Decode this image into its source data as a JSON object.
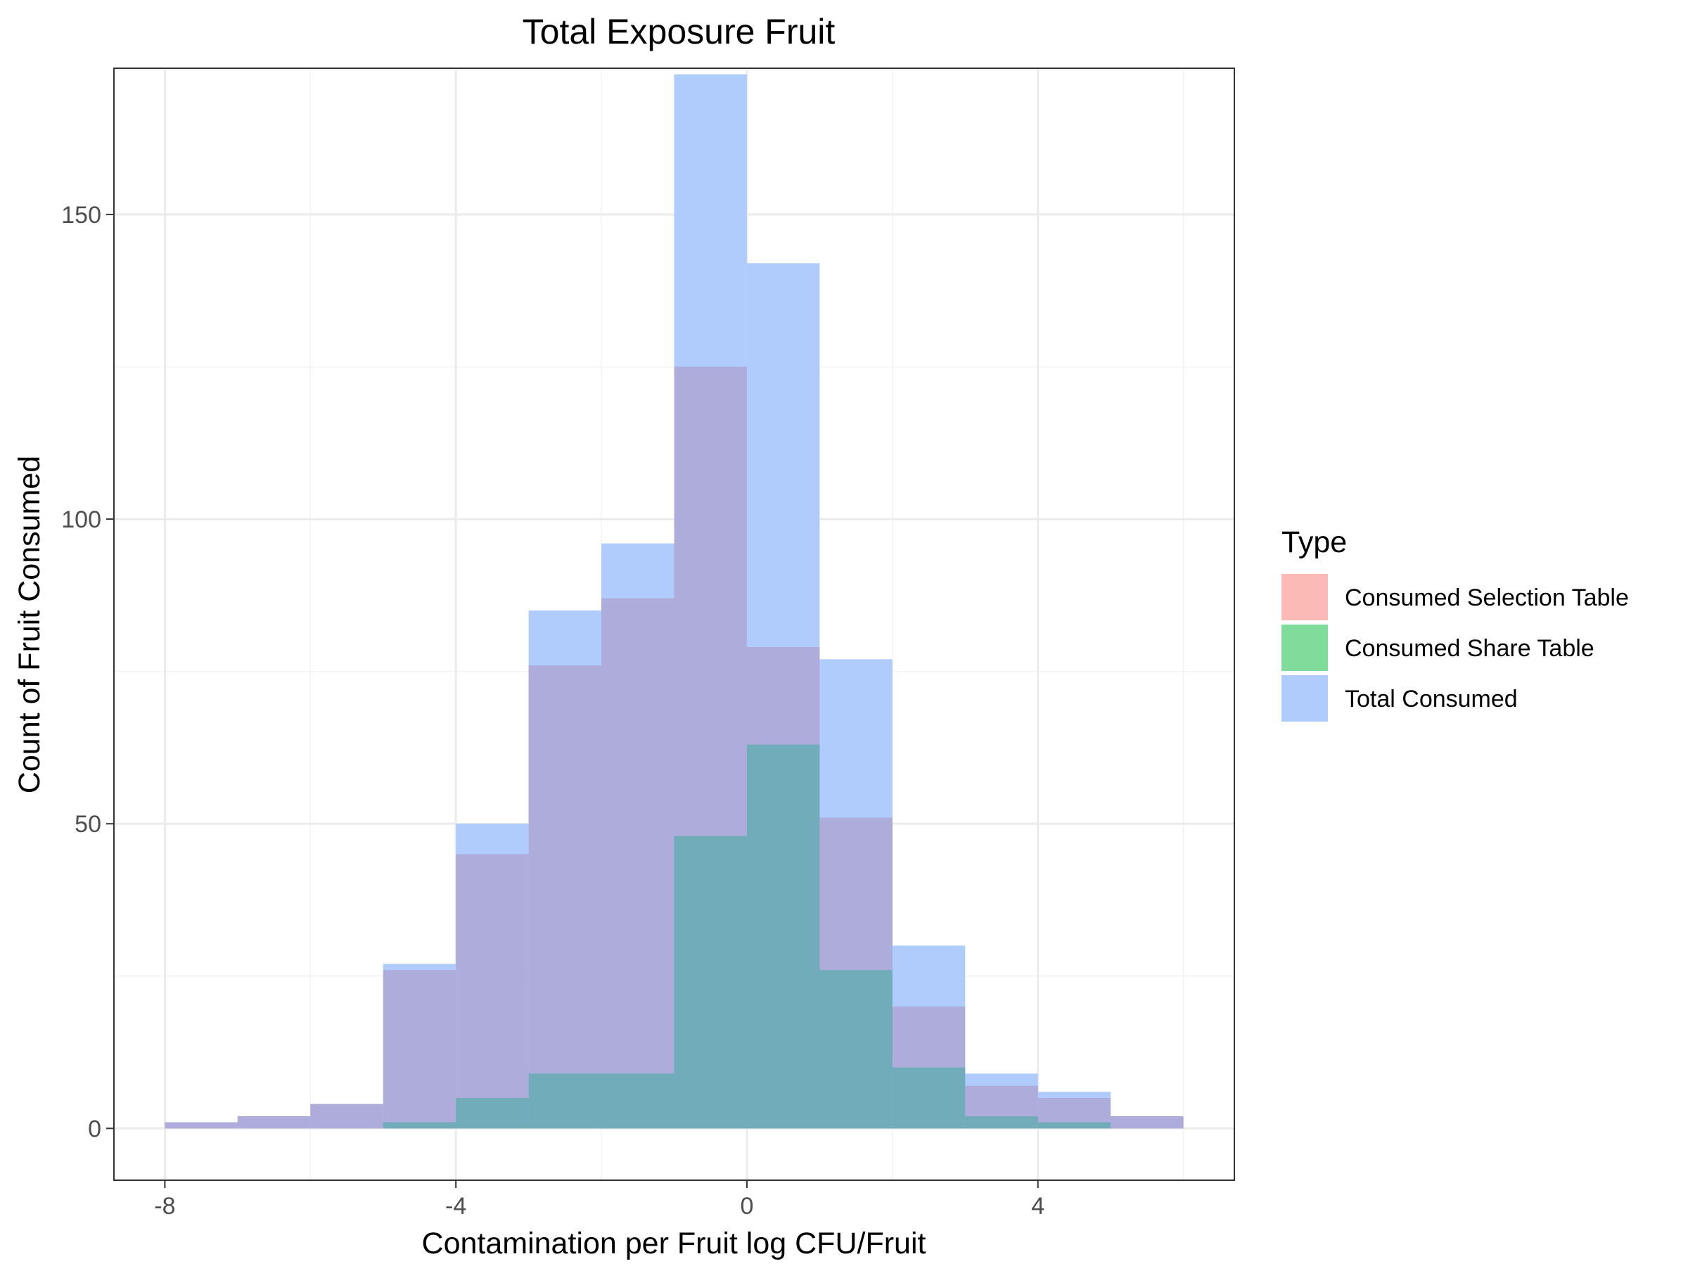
{
  "chart_data": {
    "type": "bar",
    "subtype": "overlaid-histogram",
    "title": "Total Exposure Fruit",
    "xlabel": "Contamination per Fruit log CFU/Fruit",
    "ylabel": "Count of Fruit Consumed",
    "xlim": [
      -8.7,
      6.7
    ],
    "ylim": [
      -8.5,
      174
    ],
    "xticks": [
      -8,
      -4,
      0,
      4
    ],
    "yticks": [
      0,
      50,
      100,
      150
    ],
    "bin_width": 1,
    "bin_starts": [
      -8,
      -7,
      -6,
      -5,
      -4,
      -3,
      -2,
      -1,
      0,
      1,
      2,
      3,
      4,
      5
    ],
    "grid": true,
    "legend": {
      "title": "Type",
      "position": "right",
      "entries": [
        "Consumed Selection Table",
        "Consumed Share Table",
        "Total Consumed"
      ]
    },
    "series": [
      {
        "name": "Total Consumed",
        "color": "#619CFF",
        "values": [
          1,
          2,
          4,
          27,
          50,
          85,
          96,
          173,
          142,
          77,
          30,
          9,
          6,
          2
        ]
      },
      {
        "name": "Consumed Selection Table",
        "color": "#F8766D",
        "values": [
          1,
          2,
          4,
          26,
          45,
          76,
          87,
          125,
          79,
          51,
          20,
          7,
          5,
          2
        ]
      },
      {
        "name": "Consumed Share Table",
        "color": "#00BA38",
        "values": [
          0,
          0,
          0,
          1,
          5,
          9,
          9,
          48,
          63,
          26,
          10,
          2,
          1,
          0
        ]
      }
    ],
    "display_colors": {
      "Total Consumed": "#AFCCFD",
      "Consumed Selection Table": "#ADACDB",
      "Consumed Share Table": "#71ACBA"
    },
    "legend_key_colors": {
      "Consumed Selection Table": "#FBBAB6",
      "Consumed Share Table": "#80DC9B",
      "Total Consumed": "#AFCCFD"
    }
  }
}
